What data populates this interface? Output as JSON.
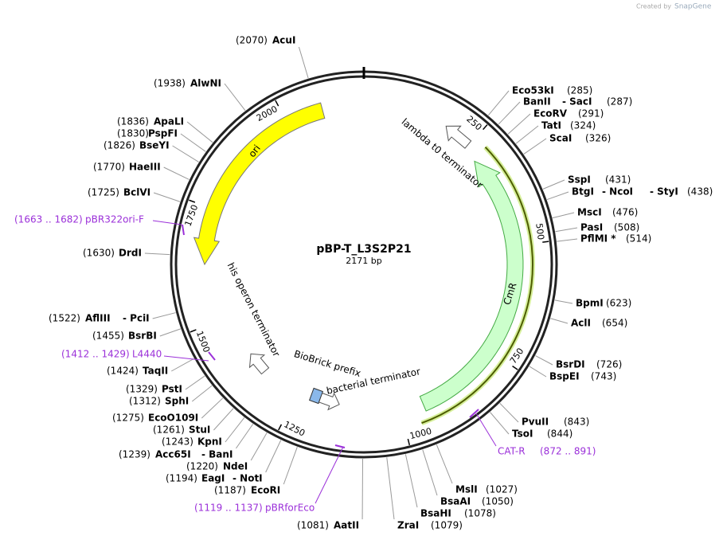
{
  "header": {
    "created_by": "Created by",
    "brand": "SnapGene"
  },
  "map": {
    "name": "pBP-T_L3S2P21",
    "length": {
      "value": 2171,
      "label": "2171 bp"
    },
    "ticks": [
      250,
      500,
      750,
      1000,
      1250,
      1500,
      1750,
      2000
    ]
  },
  "enzymes": [
    {
      "names": [
        "Eco53kI"
      ],
      "position": "(285)"
    },
    {
      "names": [
        "BanII",
        "- SacI"
      ],
      "position": "(287)"
    },
    {
      "names": [
        "EcoRV"
      ],
      "position": "(291)"
    },
    {
      "names": [
        "TatI"
      ],
      "position": "(324)"
    },
    {
      "names": [
        "ScaI"
      ],
      "position": "(326)"
    },
    {
      "names": [
        "SspI"
      ],
      "position": "(431)"
    },
    {
      "names": [
        "BtgI",
        "- NcoI",
        "- StyI"
      ],
      "position": "(438)"
    },
    {
      "names": [
        "MscI"
      ],
      "position": "(476)"
    },
    {
      "names": [
        "PasI"
      ],
      "position": "(508)"
    },
    {
      "names": [
        "PflMI *"
      ],
      "position": "(514)"
    },
    {
      "names": [
        "BpmI"
      ],
      "position": "(623)"
    },
    {
      "names": [
        "AclI"
      ],
      "position": "(654)"
    },
    {
      "names": [
        "BsrDI"
      ],
      "position": "(726)"
    },
    {
      "names": [
        "BspEI"
      ],
      "position": "(743)"
    },
    {
      "names": [
        "PvuII"
      ],
      "position": "(843)"
    },
    {
      "names": [
        "TsoI"
      ],
      "position": "(844)"
    },
    {
      "names": [
        "MslI"
      ],
      "position": "(1027)"
    },
    {
      "names": [
        "BsaAI"
      ],
      "position": "(1050)"
    },
    {
      "names": [
        "BsaHI"
      ],
      "position": "(1078)"
    },
    {
      "names": [
        "ZraI"
      ],
      "position": "(1079)"
    },
    {
      "names": [
        "AatII"
      ],
      "position": "(1081)"
    },
    {
      "names": [
        "EcoRI"
      ],
      "position": "(1187)"
    },
    {
      "names": [
        "EagI",
        "- NotI"
      ],
      "position": "(1194)"
    },
    {
      "names": [
        "NdeI"
      ],
      "position": "(1220)"
    },
    {
      "names": [
        "Acc65I",
        "- BanI"
      ],
      "position": "(1239)"
    },
    {
      "names": [
        "KpnI"
      ],
      "position": "(1243)"
    },
    {
      "names": [
        "StuI"
      ],
      "position": "(1261)"
    },
    {
      "names": [
        "EcoO109I"
      ],
      "position": "(1275)"
    },
    {
      "names": [
        "SphI"
      ],
      "position": "(1312)"
    },
    {
      "names": [
        "PstI"
      ],
      "position": "(1329)"
    },
    {
      "names": [
        "TaqII"
      ],
      "position": "(1424)"
    },
    {
      "names": [
        "BsrBI"
      ],
      "position": "(1455)"
    },
    {
      "names": [
        "AflIII",
        "- PciI"
      ],
      "position": "(1522)"
    },
    {
      "names": [
        "DrdI"
      ],
      "position": "(1630)"
    },
    {
      "names": [
        "BclVI"
      ],
      "position": "(1725)"
    },
    {
      "names": [
        "HaeIII"
      ],
      "position": "(1770)"
    },
    {
      "names": [
        "BseYI"
      ],
      "position": "(1826)"
    },
    {
      "names": [
        "PspFI"
      ],
      "position": "(1830)"
    },
    {
      "names": [
        "ApaLI"
      ],
      "position": "(1836)"
    },
    {
      "names": [
        "AlwNI"
      ],
      "position": "(1938)"
    },
    {
      "names": [
        "AcuI"
      ],
      "position": "(2070)"
    }
  ],
  "primers": [
    {
      "name": "pBR322ori-F",
      "range": "(1663 .. 1682)"
    },
    {
      "name": "L4440",
      "range": "(1412 .. 1429)"
    },
    {
      "name": "CAT-R",
      "range": "(872 .. 891)"
    },
    {
      "name": "pBRforEco",
      "range": "(1119 .. 1137)"
    }
  ],
  "features": [
    {
      "label": "ori"
    },
    {
      "label": "lambda t0 terminator"
    },
    {
      "label": "CmR"
    },
    {
      "label": "his operon terminator"
    },
    {
      "label": "BioBrick prefix"
    },
    {
      "label": "bacterial terminator"
    }
  ]
}
